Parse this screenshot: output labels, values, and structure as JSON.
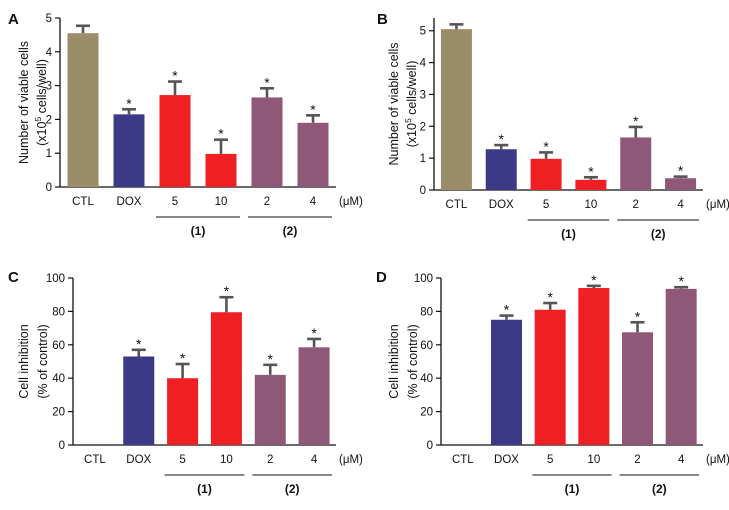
{
  "colors": {
    "CTL": "#9b8c6a",
    "DOX": "#3c3a86",
    "compound1": "#ee2024",
    "compound2": "#8f5878",
    "errorbar": "#555555",
    "axis": "#111111"
  },
  "unit_label": "(μM)",
  "significance_marker": "*",
  "chart_data": [
    {
      "panel": "A",
      "type": "bar",
      "categories": [
        "CTL",
        "DOX",
        "5",
        "10",
        "2",
        "4"
      ],
      "groups": [
        {
          "label": "(1)",
          "members": [
            2,
            3
          ]
        },
        {
          "label": "(2)",
          "members": [
            4,
            5
          ]
        }
      ],
      "values": [
        4.55,
        2.15,
        2.72,
        0.98,
        2.65,
        1.9
      ],
      "errors": [
        0.22,
        0.15,
        0.4,
        0.42,
        0.27,
        0.22
      ],
      "significant": [
        false,
        true,
        true,
        true,
        true,
        true
      ],
      "ylabel": [
        "Number of viable cells",
        "(x10",
        "5",
        " cells/well)"
      ],
      "ylim": [
        0,
        5
      ],
      "yticks": [
        0,
        1,
        2,
        3,
        4,
        5
      ],
      "ytick_labels": [
        "0",
        "1",
        "2",
        "3",
        "4",
        "5"
      ]
    },
    {
      "panel": "B",
      "type": "bar",
      "categories": [
        "CTL",
        "DOX",
        "5",
        "10",
        "2",
        "4"
      ],
      "groups": [
        {
          "label": "(1)",
          "members": [
            2,
            3
          ]
        },
        {
          "label": "(2)",
          "members": [
            4,
            5
          ]
        }
      ],
      "values": [
        5.05,
        1.28,
        0.98,
        0.32,
        1.65,
        0.37
      ],
      "errors": [
        0.15,
        0.13,
        0.2,
        0.08,
        0.33,
        0.05
      ],
      "significant": [
        false,
        true,
        true,
        true,
        true,
        true
      ],
      "ylabel": [
        "Number of viable cells",
        "(x10",
        "5",
        " cells/well)"
      ],
      "ylim": [
        0,
        5.4
      ],
      "yticks": [
        0,
        1,
        2,
        3,
        4,
        5
      ],
      "ytick_labels": [
        "0",
        "1",
        "2",
        "3",
        "4",
        "5"
      ]
    },
    {
      "panel": "C",
      "type": "bar",
      "categories": [
        "CTL",
        "DOX",
        "5",
        "10",
        "2",
        "4"
      ],
      "groups": [
        {
          "label": "(1)",
          "members": [
            2,
            3
          ]
        },
        {
          "label": "(2)",
          "members": [
            4,
            5
          ]
        }
      ],
      "values": [
        0,
        53,
        40,
        79.5,
        42,
        58.5
      ],
      "errors": [
        0,
        4,
        8.5,
        9,
        6,
        5
      ],
      "significant": [
        false,
        true,
        true,
        true,
        true,
        true
      ],
      "ylabel": [
        "Cell inhibition",
        "(% of control)"
      ],
      "ylim": [
        0,
        100
      ],
      "yticks": [
        0,
        20,
        40,
        60,
        80,
        100
      ],
      "ytick_labels": [
        "0",
        "20",
        "40",
        "60",
        "80",
        "100"
      ]
    },
    {
      "panel": "D",
      "type": "bar",
      "categories": [
        "CTL",
        "DOX",
        "5",
        "10",
        "2",
        "4"
      ],
      "groups": [
        {
          "label": "(1)",
          "members": [
            2,
            3
          ]
        },
        {
          "label": "(2)",
          "members": [
            4,
            5
          ]
        }
      ],
      "values": [
        0,
        75,
        81,
        94,
        67.5,
        93.5
      ],
      "errors": [
        0,
        2.5,
        4,
        1.3,
        6,
        1
      ],
      "significant": [
        false,
        true,
        true,
        true,
        true,
        true
      ],
      "ylabel": [
        "Cell inhibition",
        "(% of control)"
      ],
      "ylim": [
        0,
        100
      ],
      "yticks": [
        0,
        20,
        40,
        60,
        80,
        100
      ],
      "ytick_labels": [
        "0",
        "20",
        "40",
        "60",
        "80",
        "100"
      ]
    }
  ]
}
